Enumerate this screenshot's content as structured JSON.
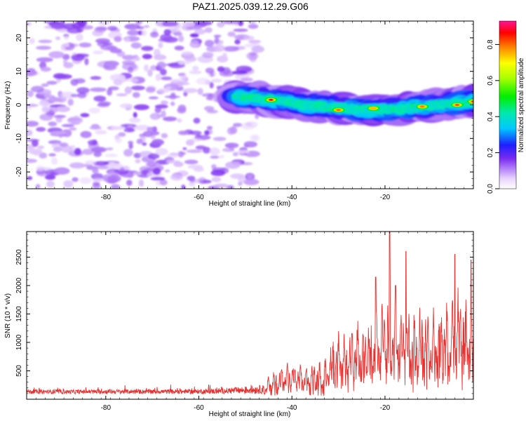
{
  "title": "PAZ1.2025.039.12.29.G06",
  "colors": {
    "snr_line": "#e8312f",
    "axis": "#000000",
    "background": "#ffffff"
  },
  "chart_data": [
    {
      "type": "heatmap",
      "name": "spectrogram",
      "xlabel": "Height of straight line (km)",
      "ylabel": "Frequency (Hz)",
      "xlim": [
        -97,
        -1
      ],
      "ylim": [
        -25,
        25
      ],
      "x_ticks": [
        -80,
        -60,
        -40,
        -20
      ],
      "x_tick_labels": [
        "-80",
        "-60",
        "-40",
        "-20"
      ],
      "y_ticks": [
        -20,
        -10,
        0,
        10,
        20
      ],
      "y_tick_labels": [
        "-20",
        "-10",
        "0",
        "10",
        "20"
      ],
      "noise_region_x": [
        -97,
        -50
      ],
      "signal_ridge": {
        "x_start": -52,
        "x_end": -1,
        "frequency_hz": [
          2.5,
          2.0,
          1.5,
          1.0,
          0.0,
          -0.5,
          -1.0,
          -1.3,
          -1.5,
          -1.4,
          -1.0,
          -0.5,
          0.0,
          0.5,
          1.0
        ]
      },
      "peaks": [
        {
          "x": -44.5,
          "freq": 1.5,
          "amp": 0.93
        },
        {
          "x": -30.0,
          "freq": -1.5,
          "amp": 0.86
        },
        {
          "x": -22.5,
          "freq": -1.0,
          "amp": 0.8
        },
        {
          "x": -12.0,
          "freq": -0.5,
          "amp": 0.85
        },
        {
          "x": -4.5,
          "freq": 0.0,
          "amp": 0.88
        },
        {
          "x": -1.0,
          "freq": 1.0,
          "amp": 0.9
        }
      ],
      "colorbar": {
        "label": "Normalized spectral amplitude",
        "min": 0.0,
        "max": 0.93,
        "tick_values": [
          0.0,
          0.2,
          0.4,
          0.6,
          0.8
        ],
        "tick_labels": [
          "0.0",
          "0.2",
          "0.4",
          "0.6",
          "0.8"
        ]
      }
    },
    {
      "type": "line",
      "name": "snr",
      "xlabel": "Height of straight line (km)",
      "ylabel": "SNR (10 * v/v)",
      "xlim": [
        -97,
        -1
      ],
      "ylim": [
        0,
        2950
      ],
      "x_ticks": [
        -80,
        -60,
        -40,
        -20
      ],
      "x_tick_labels": [
        "-80",
        "-60",
        "-40",
        "-20"
      ],
      "y_ticks": [
        500,
        1000,
        1500,
        2000,
        2500
      ],
      "y_tick_labels": [
        "500",
        "1000",
        "1500",
        "2000",
        "2500"
      ],
      "envelope_x": [
        -97,
        -90,
        -80,
        -70,
        -60,
        -55,
        -50,
        -46,
        -45,
        -42,
        -40,
        -36,
        -33,
        -31,
        -29,
        -27,
        -25,
        -23,
        -21,
        -19,
        -18,
        -16,
        -14,
        -12,
        -10,
        -8,
        -6,
        -4,
        -2,
        -1
      ],
      "envelope_y": [
        150,
        140,
        150,
        150,
        150,
        170,
        200,
        230,
        500,
        650,
        700,
        700,
        700,
        1300,
        1150,
        1350,
        1550,
        1500,
        1750,
        2300,
        2200,
        1900,
        1800,
        1750,
        1800,
        1850,
        1900,
        2250,
        2000,
        1600
      ],
      "spikes": [
        {
          "x": -19.0,
          "y": 2950
        },
        {
          "x": -22.0,
          "y": 2150
        },
        {
          "x": -15.5,
          "y": 2600
        },
        {
          "x": -5.0,
          "y": 2550
        },
        {
          "x": -1.5,
          "y": 2450
        }
      ]
    }
  ]
}
